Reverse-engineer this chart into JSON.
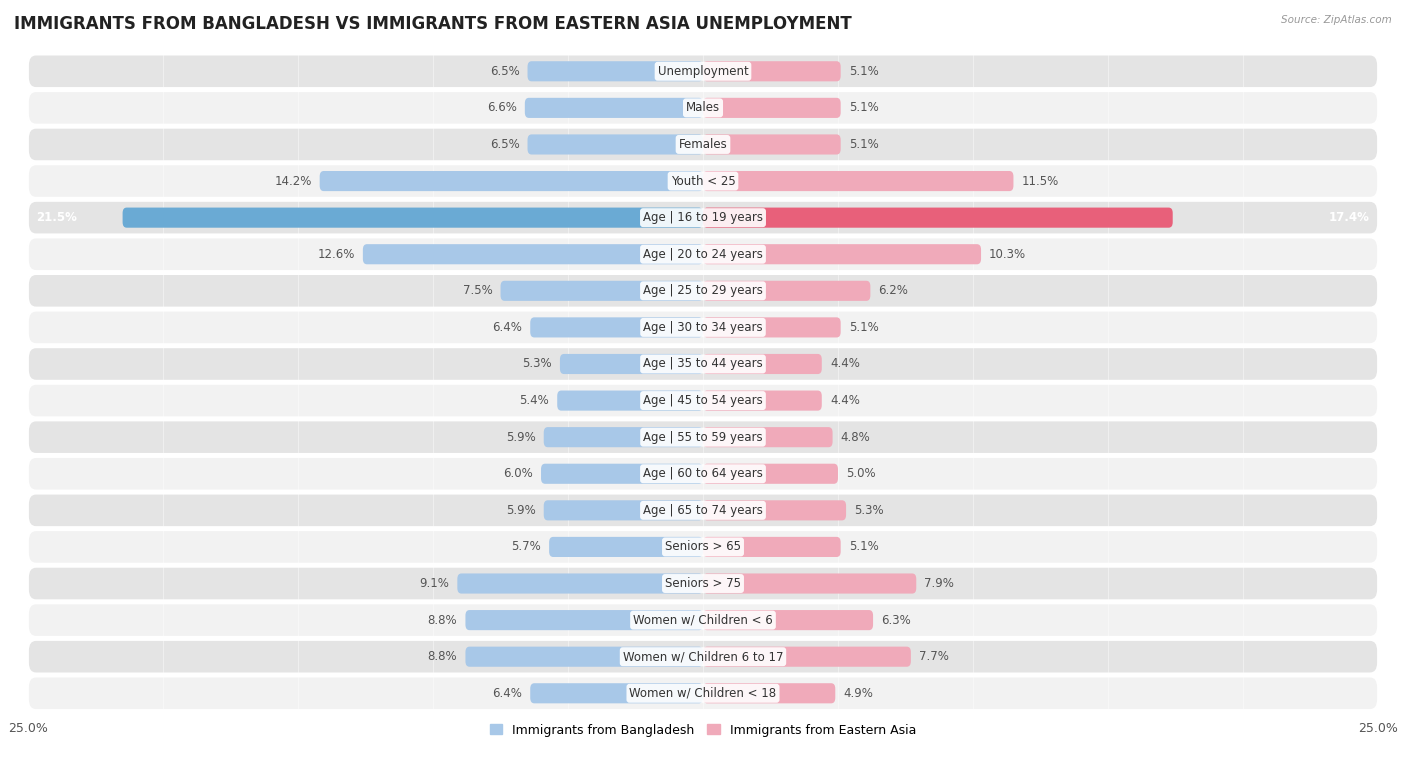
{
  "title": "IMMIGRANTS FROM BANGLADESH VS IMMIGRANTS FROM EASTERN ASIA UNEMPLOYMENT",
  "source": "Source: ZipAtlas.com",
  "categories": [
    "Unemployment",
    "Males",
    "Females",
    "Youth < 25",
    "Age | 16 to 19 years",
    "Age | 20 to 24 years",
    "Age | 25 to 29 years",
    "Age | 30 to 34 years",
    "Age | 35 to 44 years",
    "Age | 45 to 54 years",
    "Age | 55 to 59 years",
    "Age | 60 to 64 years",
    "Age | 65 to 74 years",
    "Seniors > 65",
    "Seniors > 75",
    "Women w/ Children < 6",
    "Women w/ Children 6 to 17",
    "Women w/ Children < 18"
  ],
  "bangladesh_values": [
    6.5,
    6.6,
    6.5,
    14.2,
    21.5,
    12.6,
    7.5,
    6.4,
    5.3,
    5.4,
    5.9,
    6.0,
    5.9,
    5.7,
    9.1,
    8.8,
    8.8,
    6.4
  ],
  "eastern_asia_values": [
    5.1,
    5.1,
    5.1,
    11.5,
    17.4,
    10.3,
    6.2,
    5.1,
    4.4,
    4.4,
    4.8,
    5.0,
    5.3,
    5.1,
    7.9,
    6.3,
    7.7,
    4.9
  ],
  "bangladesh_color": "#a8c8e8",
  "eastern_asia_color": "#f0aaba",
  "bangladesh_highlight_color": "#6aaad4",
  "eastern_asia_highlight_color": "#e8607a",
  "axis_limit": 25.0,
  "bar_height": 0.55,
  "row_even_color": "#e4e4e4",
  "row_odd_color": "#f2f2f2",
  "legend_label_bangladesh": "Immigrants from Bangladesh",
  "legend_label_eastern_asia": "Immigrants from Eastern Asia",
  "title_fontsize": 12,
  "label_fontsize": 8.5,
  "value_fontsize": 8.5,
  "axis_label_fontsize": 9
}
